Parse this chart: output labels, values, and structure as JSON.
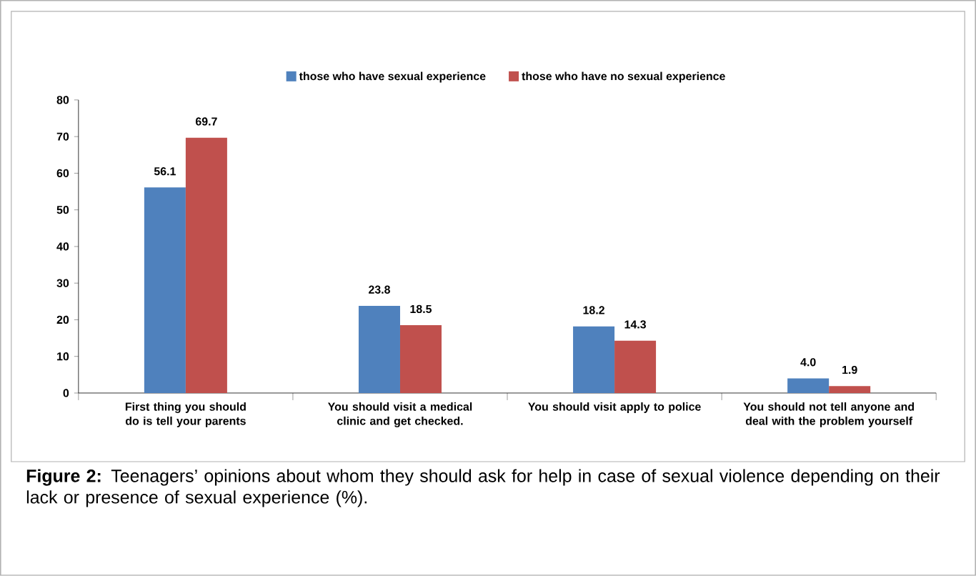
{
  "chart_data": {
    "type": "bar",
    "categories": [
      "First thing you should do is tell your parents",
      "You should visit a medical clinic and get checked.",
      "You should visit apply to police",
      "You should not tell anyone and deal with the problem yourself"
    ],
    "series": [
      {
        "name": "those who have sexual experience",
        "color": "#4f81bd",
        "values": [
          56.1,
          23.8,
          18.2,
          4.0
        ],
        "value_labels": [
          "56.1",
          "23.8",
          "18.2",
          "4.0"
        ]
      },
      {
        "name": "those who have no sexual experience",
        "color": "#c0504d",
        "values": [
          69.7,
          18.5,
          14.3,
          1.9
        ],
        "value_labels": [
          "69.7",
          "18.5",
          "14.3",
          "1.9"
        ]
      }
    ],
    "ylim": [
      0,
      80
    ],
    "yticks": [
      0,
      10,
      20,
      30,
      40,
      50,
      60,
      70,
      80
    ],
    "grid": false,
    "legend": "top",
    "annotations": [
      "**Figure 2:** Teenagers’ opinions about whom they should ask for help in case of sexual violence depending on their lack or presence of sexual experience (%)."
    ]
  }
}
